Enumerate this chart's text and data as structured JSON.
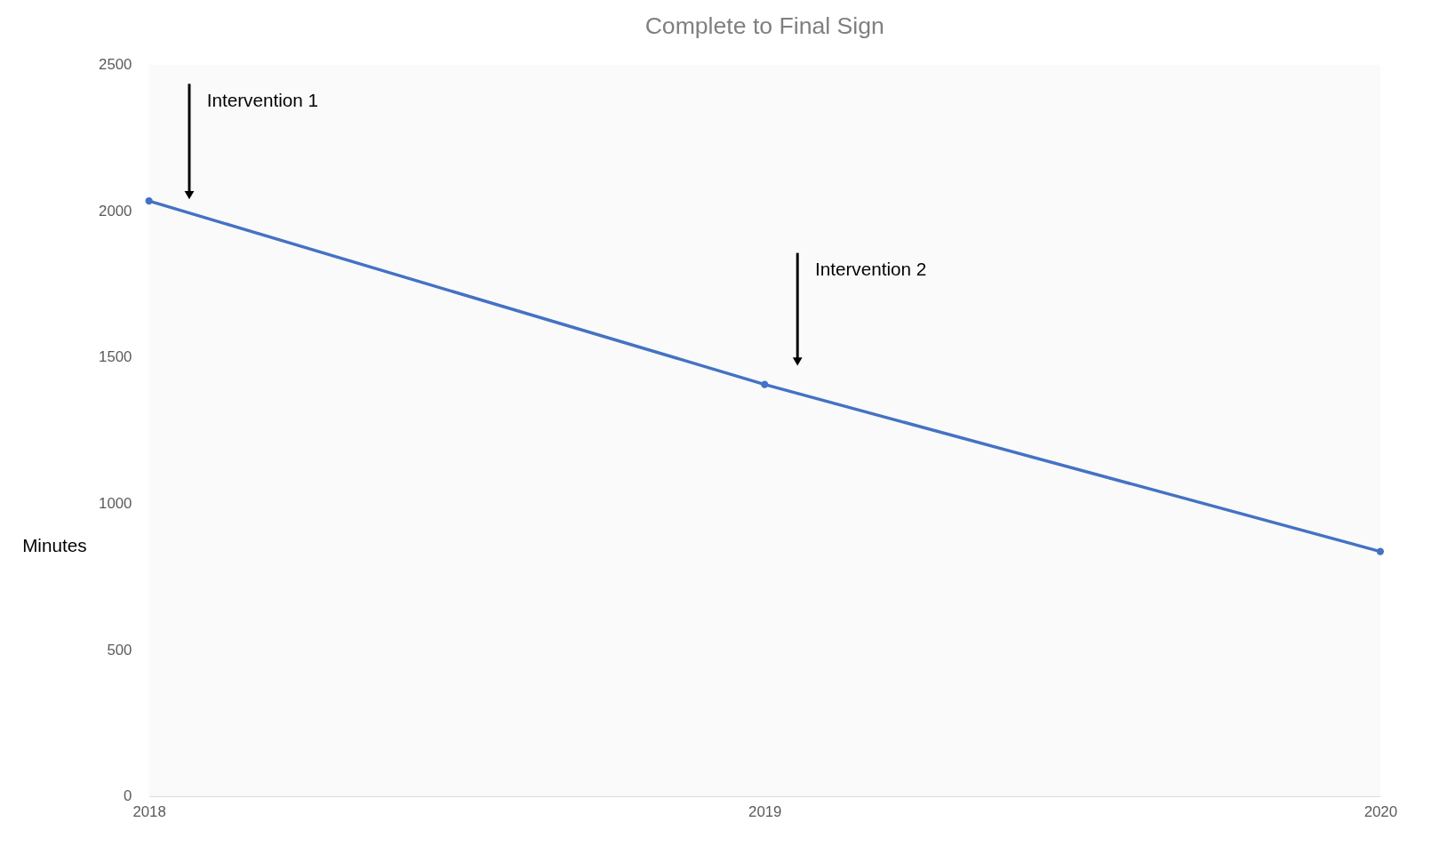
{
  "chart_data": {
    "type": "line",
    "title": "Complete to Final Sign",
    "ylabel": "Minutes",
    "categories": [
      "2018",
      "2019",
      "2020"
    ],
    "series": [
      {
        "color": "#4472c4",
        "values": [
          2034,
          1407,
          836
        ]
      }
    ],
    "ylim": [
      0,
      2500
    ],
    "yticks": [
      0,
      500,
      1000,
      1500,
      2000,
      2500
    ],
    "grid": false,
    "marker": "circle",
    "line_style": "solid",
    "annotations": [
      "Intervention 1",
      "Intervention 2"
    ]
  }
}
